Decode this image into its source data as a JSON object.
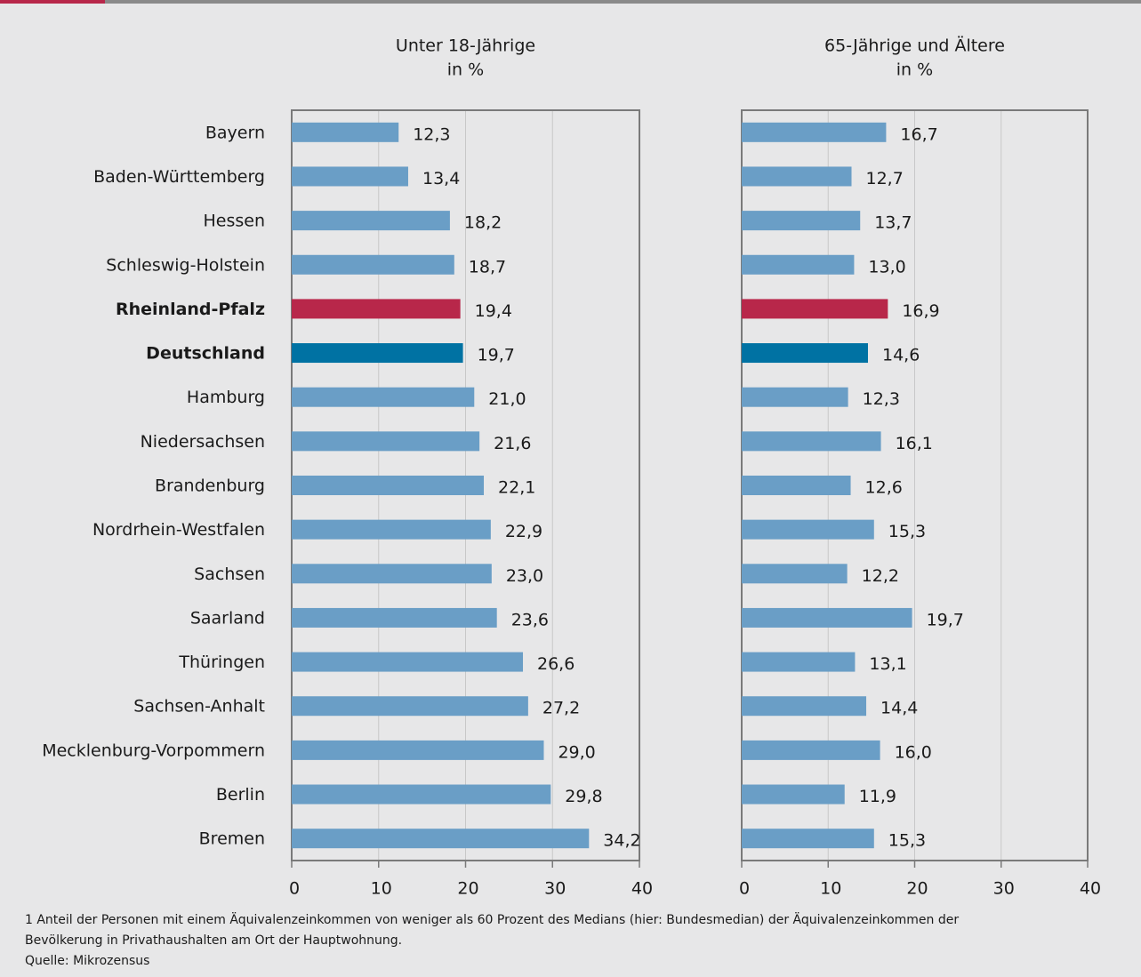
{
  "chart_data": [
    {
      "type": "hbar",
      "title": "Unter 18-Jährige",
      "subtitle": "in %",
      "categories": [
        "Bayern",
        "Baden-Württemberg",
        "Hessen",
        "Schleswig-Holstein",
        "Rheinland-Pfalz",
        "Deutschland",
        "Hamburg",
        "Niedersachsen",
        "Brandenburg",
        "Nordrhein-Westfalen",
        "Sachsen",
        "Saarland",
        "Thüringen",
        "Sachsen-Anhalt",
        "Mecklenburg-Vorpommern",
        "Berlin",
        "Bremen"
      ],
      "values": [
        12.3,
        13.4,
        18.2,
        18.7,
        19.4,
        19.7,
        21.0,
        21.6,
        22.1,
        22.9,
        23.0,
        23.6,
        26.6,
        27.2,
        29.0,
        29.8,
        34.2
      ],
      "value_labels": [
        "12,3",
        "13,4",
        "18,2",
        "18,7",
        "19,4",
        "19,7",
        "21,0",
        "21,6",
        "22,1",
        "22,9",
        "23,0",
        "23,6",
        "26,6",
        "27,2",
        "29,0",
        "29,8",
        "34,2"
      ],
      "color": "#6a9ec6",
      "colors": [
        "#6a9ec6",
        "#6a9ec6",
        "#6a9ec6",
        "#6a9ec6",
        "#b8274a",
        "#0072a3",
        "#6a9ec6",
        "#6a9ec6",
        "#6a9ec6",
        "#6a9ec6",
        "#6a9ec6",
        "#6a9ec6",
        "#6a9ec6",
        "#6a9ec6",
        "#6a9ec6",
        "#6a9ec6",
        "#6a9ec6"
      ],
      "xlim": [
        0,
        40
      ],
      "xticks": [
        0,
        10,
        20,
        30,
        40
      ],
      "grid": true
    },
    {
      "type": "hbar",
      "title": "65-Jährige und Ältere",
      "subtitle": "in %",
      "values": [
        16.7,
        12.7,
        13.7,
        13.0,
        16.9,
        14.6,
        12.3,
        16.1,
        12.6,
        15.3,
        12.2,
        19.7,
        13.1,
        14.4,
        16.0,
        11.9,
        15.3
      ],
      "value_labels": [
        "16,7",
        "12,7",
        "13,7",
        "13,0",
        "16,9",
        "14,6",
        "12,3",
        "16,1",
        "12,6",
        "15,3",
        "12,2",
        "19,7",
        "13,1",
        "14,4",
        "16,0",
        "11,9",
        "15,3"
      ],
      "color": "#6a9ec6",
      "colors": [
        "#6a9ec6",
        "#6a9ec6",
        "#6a9ec6",
        "#6a9ec6",
        "#b8274a",
        "#0072a3",
        "#6a9ec6",
        "#6a9ec6",
        "#6a9ec6",
        "#6a9ec6",
        "#6a9ec6",
        "#6a9ec6",
        "#6a9ec6",
        "#6a9ec6",
        "#6a9ec6",
        "#6a9ec6",
        "#6a9ec6"
      ],
      "xlim": [
        0,
        40
      ],
      "xticks": [
        0,
        10,
        20,
        30,
        40
      ],
      "grid": true
    }
  ],
  "footnote": [
    "1 Anteil der Personen mit einem Äquivalenzeinkommen von weniger als 60 Prozent des Medians (hier: Bundesmedian) der Äquivalenzeinkommen der",
    "Bevölkerung in Privathaushalten am Ort der Hauptwohnung.",
    "Quelle: Mikrozensus"
  ]
}
